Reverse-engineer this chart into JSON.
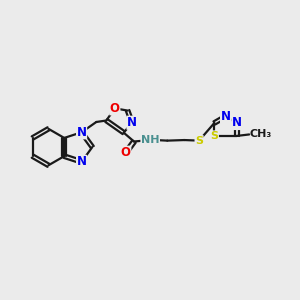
{
  "background_color": "#ebebeb",
  "bond_color": "#1a1a1a",
  "bond_width": 1.6,
  "atom_colors": {
    "N": "#0000ee",
    "O": "#ee0000",
    "S_yellow": "#cccc00",
    "S_green": "#2e8b57",
    "NH": "#4a9090",
    "C": "#1a1a1a"
  },
  "font_size_atom": 8.5,
  "font_size_methyl": 8.0,
  "xlim": [
    0,
    10
  ],
  "ylim": [
    0,
    10
  ]
}
